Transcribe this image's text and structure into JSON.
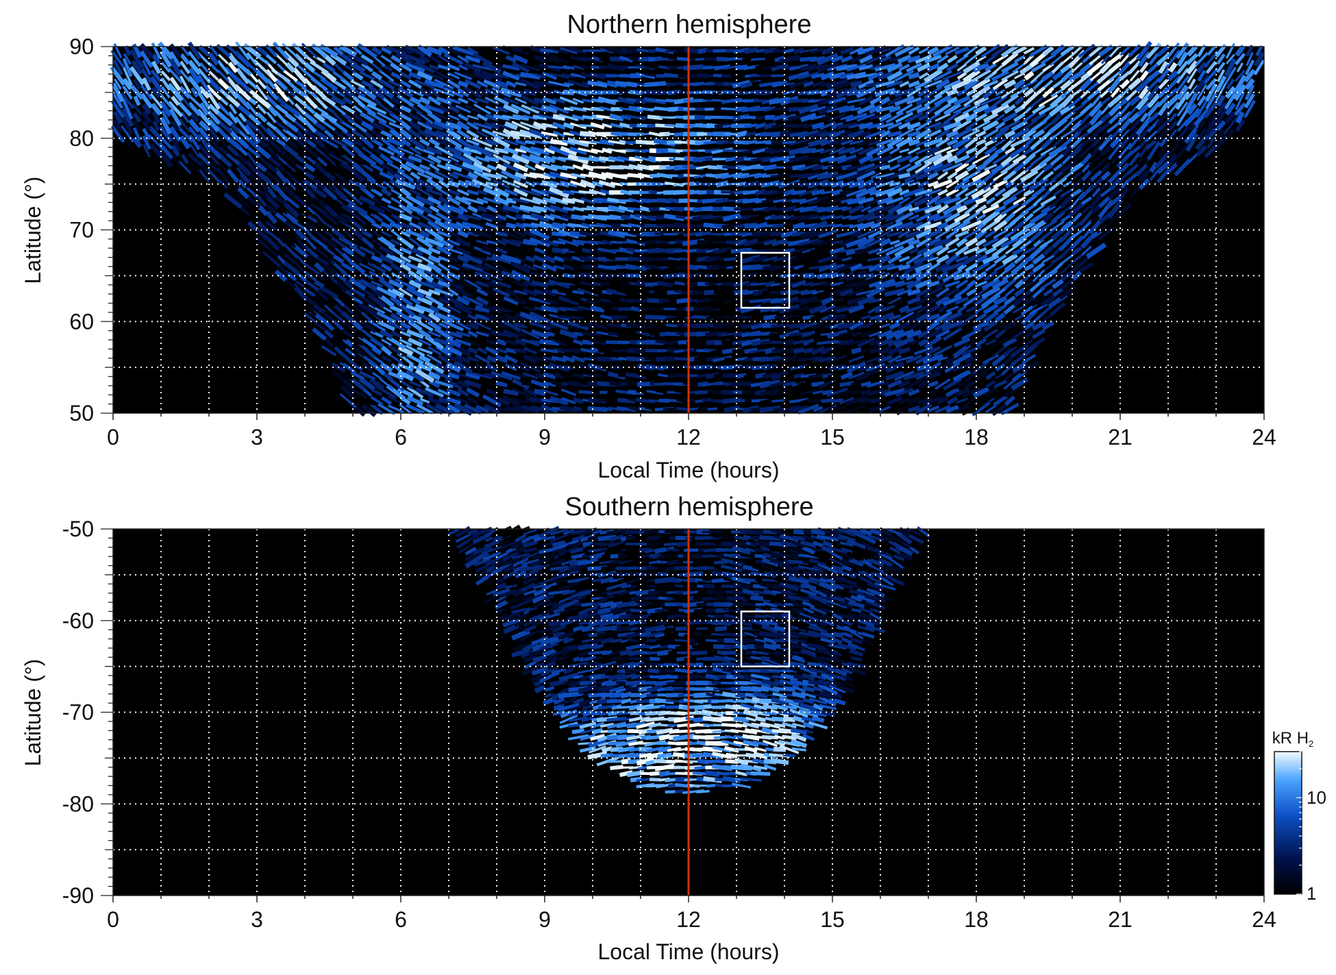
{
  "colors": {
    "background": "#000000",
    "emission_low": "#00124d",
    "emission_mid": "#1e6fe0",
    "emission_high": "#f4fbff",
    "noon_line": "#cc3300",
    "grid": "#ffffff",
    "box": "#ffffff"
  },
  "chart_data": [
    {
      "type": "heatmap",
      "title": "Northern hemisphere",
      "xlabel": "Local Time (hours)",
      "ylabel": "Latitude (°)",
      "xlim": [
        0,
        24
      ],
      "ylim": [
        50,
        90
      ],
      "xticks": [
        0,
        3,
        6,
        9,
        12,
        15,
        18,
        21,
        24
      ],
      "yticks": [
        50,
        60,
        70,
        80,
        90
      ],
      "grid": true,
      "x_grid_step": 1,
      "y_grid_step": 5,
      "noon_line_x": 12,
      "box": {
        "x": [
          13.1,
          14.1
        ],
        "y": [
          61.5,
          67.5
        ]
      },
      "coverage": {
        "lat_break": 80,
        "upper_lat_range": [
          80,
          90
        ],
        "outline": [
          [
            50,
            5.0,
            18.7
          ],
          [
            55,
            4.6,
            19.1
          ],
          [
            60,
            4.1,
            19.6
          ],
          [
            65,
            3.5,
            20.2
          ],
          [
            70,
            2.9,
            20.8
          ],
          [
            75,
            2.2,
            21.6
          ],
          [
            80,
            0.1,
            23.6
          ],
          [
            90,
            0.0,
            24.0
          ]
        ]
      },
      "bright_features": [
        {
          "x": 10.0,
          "y": 78,
          "intensity": 30,
          "sx": 1.8,
          "sy": 4
        },
        {
          "x": 18.0,
          "y": 74,
          "intensity": 22,
          "sx": 1.2,
          "sy": 6
        },
        {
          "x": 6.3,
          "y": 60,
          "intensity": 14,
          "sx": 0.5,
          "sy": 10
        },
        {
          "x": 3.0,
          "y": 86,
          "intensity": 22,
          "sx": 2.0,
          "sy": 3
        },
        {
          "x": 20.0,
          "y": 87,
          "intensity": 22,
          "sx": 2.5,
          "sy": 3
        }
      ]
    },
    {
      "type": "heatmap",
      "title": "Southern hemisphere",
      "xlabel": "Local Time (hours)",
      "ylabel": "Latitude (°)",
      "xlim": [
        0,
        24
      ],
      "ylim": [
        -90,
        -50
      ],
      "xticks": [
        0,
        3,
        6,
        9,
        12,
        15,
        18,
        21,
        24
      ],
      "yticks": [
        -50,
        -60,
        -70,
        -80,
        -90
      ],
      "grid": true,
      "x_grid_step": 1,
      "y_grid_step": 5,
      "noon_line_x": 12,
      "box": {
        "x": [
          13.1,
          14.1
        ],
        "y": [
          -65.0,
          -59.0
        ]
      },
      "coverage": {
        "outline": [
          [
            -50,
            7.0,
            17.0
          ],
          [
            -55,
            7.6,
            16.4
          ],
          [
            -60,
            8.1,
            16.0
          ],
          [
            -65,
            8.6,
            15.6
          ],
          [
            -70,
            9.2,
            15.0
          ],
          [
            -75,
            10.0,
            14.2
          ],
          [
            -78,
            11.0,
            13.2
          ],
          [
            -79,
            12.0,
            12.0
          ]
        ]
      },
      "bright_features": [
        {
          "x": 11.5,
          "y": -74,
          "intensity": 32,
          "sx": 1.4,
          "sy": 3
        },
        {
          "x": 13.5,
          "y": -72,
          "intensity": 16,
          "sx": 1.0,
          "sy": 3
        }
      ]
    }
  ],
  "colorbar": {
    "title": "kR H",
    "title_subscript": "2",
    "ticks": [
      {
        "value": 1,
        "label": "1"
      },
      {
        "value": 10,
        "label": "10"
      }
    ],
    "range": [
      1,
      30
    ],
    "scale": "log"
  }
}
